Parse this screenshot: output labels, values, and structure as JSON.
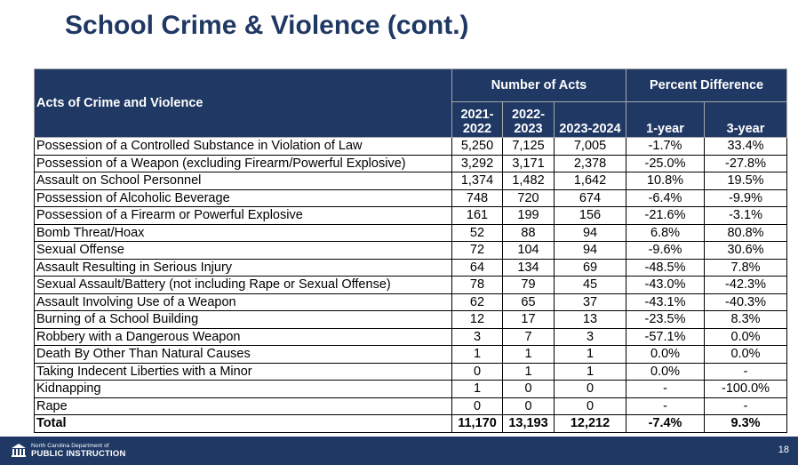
{
  "slide": {
    "title": "School Crime & Violence (cont.)"
  },
  "table": {
    "header": {
      "label": "Acts of Crime and Violence",
      "group_acts": "Number of Acts",
      "group_pct": "Percent Difference",
      "y1": "2021-\n2022",
      "y2": "2022-\n2023",
      "y3": "2023-2024",
      "p1": "1-year",
      "p3": "3-year"
    },
    "rows": [
      [
        "Possession of a Controlled Substance in Violation of Law",
        "5,250",
        "7,125",
        "7,005",
        "-1.7%",
        "33.4%"
      ],
      [
        "Possession of a Weapon (excluding Firearm/Powerful Explosive)",
        "3,292",
        "3,171",
        "2,378",
        "-25.0%",
        "-27.8%"
      ],
      [
        "Assault on School Personnel",
        "1,374",
        "1,482",
        "1,642",
        "10.8%",
        "19.5%"
      ],
      [
        "Possession of Alcoholic Beverage",
        "748",
        "720",
        "674",
        "-6.4%",
        "-9.9%"
      ],
      [
        "Possession of a Firearm or Powerful Explosive",
        "161",
        "199",
        "156",
        "-21.6%",
        "-3.1%"
      ],
      [
        "Bomb Threat/Hoax",
        "52",
        "88",
        "94",
        "6.8%",
        "80.8%"
      ],
      [
        "Sexual Offense",
        "72",
        "104",
        "94",
        "-9.6%",
        "30.6%"
      ],
      [
        "Assault Resulting in Serious Injury",
        "64",
        "134",
        "69",
        "-48.5%",
        "7.8%"
      ],
      [
        "Sexual Assault/Battery (not including Rape or Sexual Offense)",
        "78",
        "79",
        "45",
        "-43.0%",
        "-42.3%"
      ],
      [
        "Assault Involving Use of a Weapon",
        "62",
        "65",
        "37",
        "-43.1%",
        "-40.3%"
      ],
      [
        "Burning of a School Building",
        "12",
        "17",
        "13",
        "-23.5%",
        "8.3%"
      ],
      [
        "Robbery with a Dangerous Weapon",
        "3",
        "7",
        "3",
        "-57.1%",
        "0.0%"
      ],
      [
        "Death By Other Than Natural Causes",
        "1",
        "1",
        "1",
        "0.0%",
        "0.0%"
      ],
      [
        "Taking Indecent Liberties with a Minor",
        "0",
        "1",
        "1",
        "0.0%",
        "-"
      ],
      [
        "Kidnapping",
        "1",
        "0",
        "0",
        "-",
        "-100.0%"
      ],
      [
        "Rape",
        "0",
        "0",
        "0",
        "-",
        "-"
      ]
    ],
    "total": [
      "Total",
      "11,170",
      "13,193",
      "12,212",
      "-7.4%",
      "9.3%"
    ]
  },
  "footer": {
    "logo_line1": "North Carolina Department of",
    "logo_line2": "PUBLIC INSTRUCTION",
    "logo_icon": "dpi-building-icon",
    "page_number": "18"
  },
  "colors": {
    "navy": "#1f3864",
    "grid": "#000000"
  }
}
